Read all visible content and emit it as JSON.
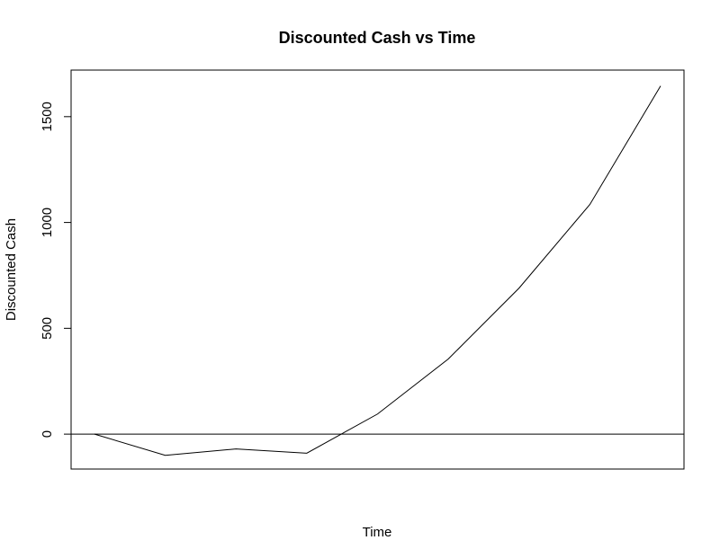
{
  "chart_data": {
    "type": "line",
    "title": "Discounted Cash vs Time",
    "xlabel": "Time",
    "ylabel": "Discounted Cash",
    "x": [
      1,
      2,
      3,
      4,
      5,
      6,
      7,
      8,
      9
    ],
    "series": [
      {
        "values": [
          0,
          -100,
          -70,
          -90,
          95,
          355,
          690,
          1085,
          1645
        ]
      }
    ],
    "ylim": [
      -165,
      1720
    ],
    "yticks": [
      "0",
      "500",
      "1000",
      "1500"
    ],
    "reference_line": {
      "y": 0
    },
    "grid": false,
    "legend": "none"
  }
}
